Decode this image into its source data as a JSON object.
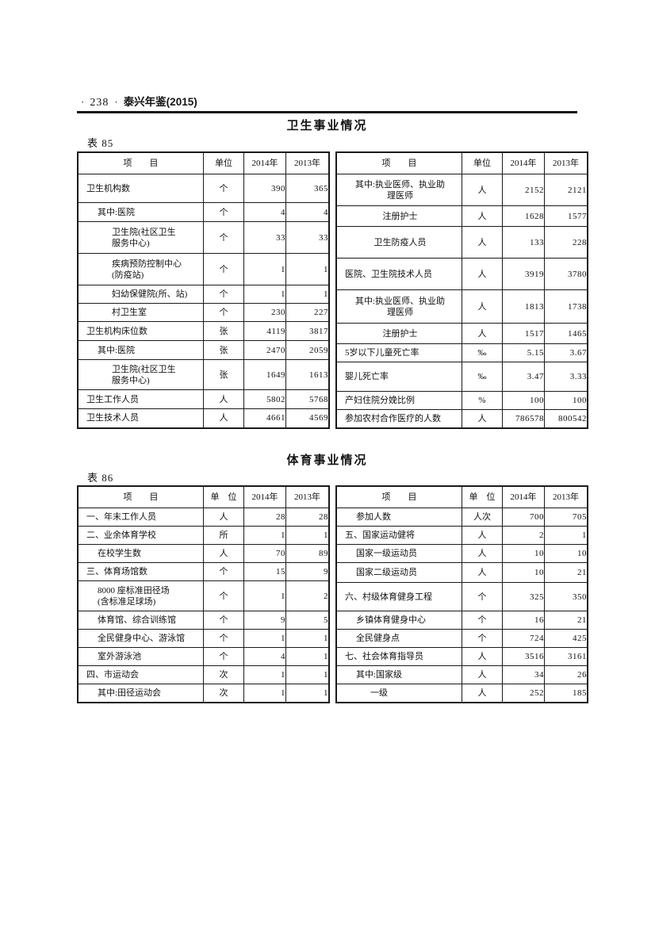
{
  "header": {
    "dot_left": "·",
    "page_number": "238",
    "dot_right": "·",
    "book_title": "泰兴年鉴(2015)"
  },
  "tables": {
    "health": {
      "title": "卫生事业情况",
      "label": "表 85",
      "left": {
        "headers": [
          "项　　目",
          "单位",
          "2014年",
          "2013年"
        ],
        "rows": [
          {
            "t": "卫生机构数",
            "u": "个",
            "a": "390",
            "b": "365",
            "cls": "i0",
            "h": 36
          },
          {
            "t": "其中:医院",
            "u": "个",
            "a": "4",
            "b": "4",
            "cls": "i1",
            "h": 24
          },
          {
            "t": "卫生院(社区卫生\n服务中心)",
            "u": "个",
            "a": "33",
            "b": "33",
            "cls": "i2",
            "h": 40
          },
          {
            "t": "疾病预防控制中心\n(防疫站)",
            "u": "个",
            "a": "1",
            "b": "1",
            "cls": "i2",
            "h": 40
          },
          {
            "t": "妇幼保健院(所、站)",
            "u": "个",
            "a": "1",
            "b": "1",
            "cls": "i2",
            "h": 23
          },
          {
            "t": "村卫生室",
            "u": "个",
            "a": "230",
            "b": "227",
            "cls": "i2",
            "h": 23
          },
          {
            "t": "卫生机构床位数",
            "u": "张",
            "a": "4119",
            "b": "3817",
            "cls": "i0",
            "h": 24
          },
          {
            "t": "其中:医院",
            "u": "张",
            "a": "2470",
            "b": "2059",
            "cls": "i1",
            "h": 24
          },
          {
            "t": "卫生院(社区卫生\n服务中心)",
            "u": "张",
            "a": "1649",
            "b": "1613",
            "cls": "i2",
            "h": 38
          },
          {
            "t": "卫生工作人员",
            "u": "人",
            "a": "5802",
            "b": "5768",
            "cls": "i0",
            "h": 24
          },
          {
            "t": "卫生技术人员",
            "u": "人",
            "a": "4661",
            "b": "4569",
            "cls": "i0",
            "h": 24
          }
        ]
      },
      "right": {
        "headers": [
          "项　　目",
          "单位",
          "2014年",
          "2013年"
        ],
        "rows": [
          {
            "t": "其中:执业医师、执业助\n理医师",
            "u": "人",
            "a": "2152",
            "b": "2121",
            "cls": "c",
            "h": 40
          },
          {
            "t": "注册护士",
            "u": "人",
            "a": "1628",
            "b": "1577",
            "cls": "c",
            "h": 26
          },
          {
            "t": "卫生防疫人员",
            "u": "人",
            "a": "133",
            "b": "228",
            "cls": "c",
            "h": 40
          },
          {
            "t": "医院、卫生院技术人员",
            "u": "人",
            "a": "3919",
            "b": "3780",
            "cls": "i0",
            "h": 40
          },
          {
            "t": "其中:执业医师、执业助\n理医师",
            "u": "人",
            "a": "1813",
            "b": "1738",
            "cls": "c",
            "h": 42
          },
          {
            "t": "注册护士",
            "u": "人",
            "a": "1517",
            "b": "1465",
            "cls": "c",
            "h": 26
          },
          {
            "t": "5岁以下儿童死亡率",
            "u": "‰",
            "a": "5.15",
            "b": "3.67",
            "cls": "i0",
            "h": 23
          },
          {
            "t": "婴儿死亡率",
            "u": "‰",
            "a": "3.47",
            "b": "3.33",
            "cls": "i0",
            "h": 37
          },
          {
            "t": "产妇住院分娩比例",
            "u": "%",
            "a": "100",
            "b": "100",
            "cls": "i0",
            "h": 23
          },
          {
            "t": "参加农村合作医疗的人数",
            "u": "人",
            "a": "786578",
            "b": "800542",
            "cls": "i0",
            "h": 23
          }
        ]
      }
    },
    "sports": {
      "title": "体育事业情况",
      "label": "表 86",
      "left": {
        "headers": [
          "项　　目",
          "单　位",
          "2014年",
          "2013年"
        ],
        "rows": [
          {
            "t": "一、年末工作人员",
            "u": "人",
            "a": "28",
            "b": "28",
            "cls": "i0",
            "h": 23
          },
          {
            "t": "二、业余体育学校",
            "u": "所",
            "a": "1",
            "b": "1",
            "cls": "i0",
            "h": 23
          },
          {
            "t": "在校学生数",
            "u": "人",
            "a": "70",
            "b": "89",
            "cls": "i1",
            "h": 23
          },
          {
            "t": "三、体育场馆数",
            "u": "个",
            "a": "15",
            "b": "9",
            "cls": "i0",
            "h": 23
          },
          {
            "t": "8000 座标准田径场\n(含标准足球场)",
            "u": "个",
            "a": "1",
            "b": "2",
            "cls": "i1",
            "h": 38
          },
          {
            "t": "体育馆、综合训练馆",
            "u": "个",
            "a": "9",
            "b": "5",
            "cls": "i1",
            "h": 23
          },
          {
            "t": "全民健身中心、游泳馆",
            "u": "个",
            "a": "1",
            "b": "1",
            "cls": "i1",
            "h": 23
          },
          {
            "t": "室外游泳池",
            "u": "个",
            "a": "4",
            "b": "1",
            "cls": "i1",
            "h": 23
          },
          {
            "t": "四、市运动会",
            "u": "次",
            "a": "1",
            "b": "1",
            "cls": "i0",
            "h": 23
          },
          {
            "t": "其中:田径运动会",
            "u": "次",
            "a": "1",
            "b": "1",
            "cls": "i1",
            "h": 23
          }
        ]
      },
      "right": {
        "headers": [
          "项　　目",
          "单　位",
          "2014年",
          "2013年"
        ],
        "rows": [
          {
            "t": "参加人数",
            "u": "人次",
            "a": "700",
            "b": "705",
            "cls": "i1",
            "h": 23
          },
          {
            "t": "五、国家运动健将",
            "u": "人",
            "a": "2",
            "b": "1",
            "cls": "i0",
            "h": 23
          },
          {
            "t": "国家一级运动员",
            "u": "人",
            "a": "10",
            "b": "10",
            "cls": "i1",
            "h": 23
          },
          {
            "t": "国家二级运动员",
            "u": "人",
            "a": "10",
            "b": "21",
            "cls": "i1",
            "h": 25
          },
          {
            "t": "六、村级体育健身工程",
            "u": "个",
            "a": "325",
            "b": "350",
            "cls": "i0",
            "h": 36
          },
          {
            "t": "乡镇体育健身中心",
            "u": "个",
            "a": "16",
            "b": "21",
            "cls": "i1",
            "h": 23
          },
          {
            "t": "全民健身点",
            "u": "个",
            "a": "724",
            "b": "425",
            "cls": "i1",
            "h": 23
          },
          {
            "t": "七、社会体育指导员",
            "u": "人",
            "a": "3516",
            "b": "3161",
            "cls": "i0",
            "h": 23
          },
          {
            "t": "其中:国家级",
            "u": "人",
            "a": "34",
            "b": "26",
            "cls": "i1",
            "h": 23
          },
          {
            "t": "一级",
            "u": "人",
            "a": "252",
            "b": "185",
            "cls": "i2",
            "h": 23
          }
        ]
      }
    }
  }
}
